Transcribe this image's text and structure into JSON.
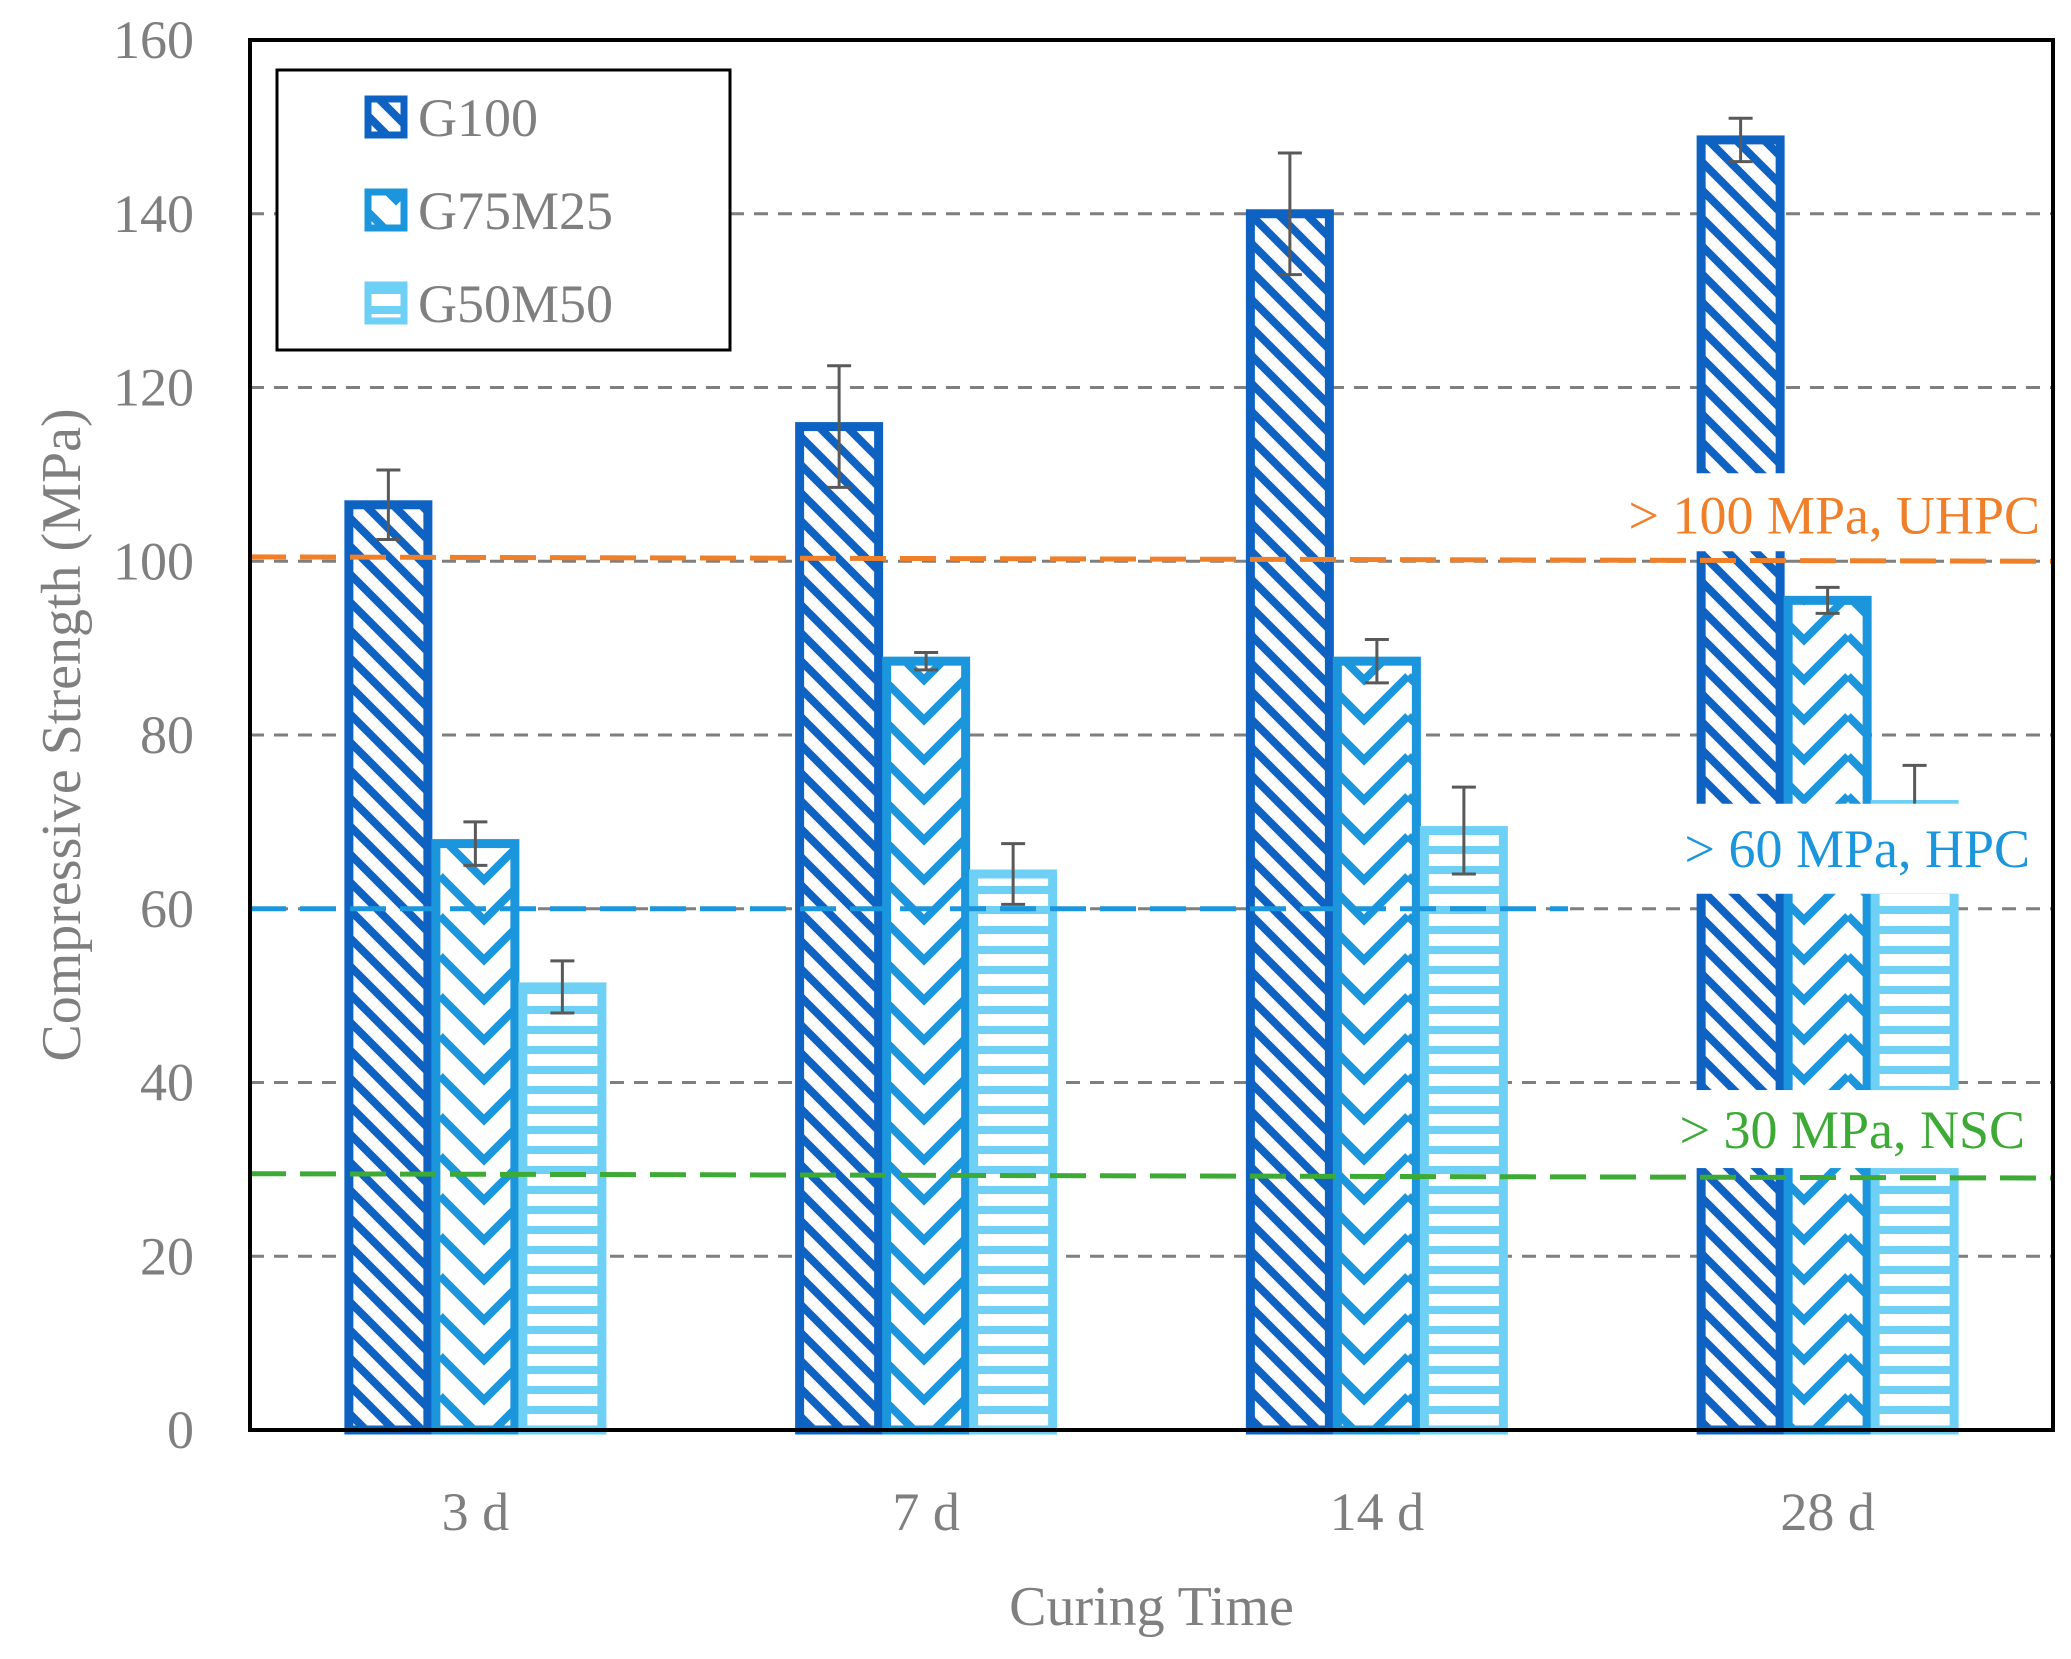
{
  "chart_data": {
    "type": "bar",
    "title": "",
    "xlabel": "Curing Time",
    "ylabel": "Compressive Strength (MPa)",
    "ylim": [
      0,
      160
    ],
    "yticks": [
      0,
      20,
      40,
      60,
      80,
      100,
      120,
      140,
      160
    ],
    "grid": true,
    "legend_position": "top-left",
    "categories": [
      "3 d",
      "7 d",
      "14 d",
      "28 d"
    ],
    "series": [
      {
        "name": "G100",
        "values": [
          106.5,
          115.5,
          140.0,
          148.5
        ],
        "errors": [
          4.0,
          7.0,
          7.0,
          2.5
        ],
        "color": "#0e63c2",
        "pattern": "diagonal"
      },
      {
        "name": "G75M25",
        "values": [
          67.5,
          88.5,
          88.5,
          95.5
        ],
        "errors": [
          2.5,
          1.0,
          2.5,
          1.5
        ],
        "color": "#1b95dc",
        "pattern": "chevron"
      },
      {
        "name": "G50M50",
        "values": [
          51.0,
          64.0,
          69.0,
          72.0
        ],
        "errors": [
          3.0,
          3.5,
          5.0,
          4.5
        ],
        "color": "#6ed0f4",
        "pattern": "horizontal"
      }
    ],
    "reference_lines": [
      {
        "label": "> 100 MPa, UHPC",
        "start": 100.5,
        "end": 100.0,
        "color": "#f07f2a"
      },
      {
        "label": "> 60 MPa, HPC",
        "start": 60.0,
        "end": 60.0,
        "color": "#1b95dc"
      },
      {
        "label": "> 30 MPa, NSC",
        "start": 29.5,
        "end": 29.0,
        "color": "#3daa35"
      }
    ],
    "axis_color": "#000000",
    "text_color": "#7f7f7f",
    "grid_color": "#7f7f7f"
  }
}
